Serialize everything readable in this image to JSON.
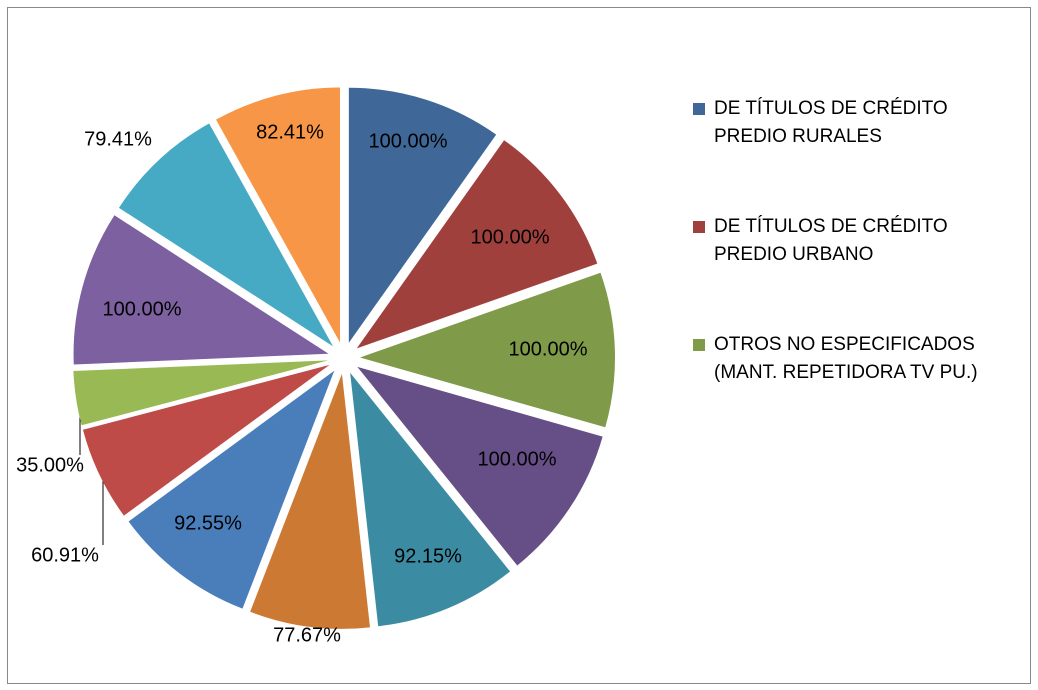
{
  "chart_data": {
    "type": "pie",
    "categories": [
      "DE TÍTULOS DE CRÉDITO PREDIO RURALES",
      "DE TÍTULOS DE CRÉDITO PREDIO URBANO",
      "OTROS NO ESPECIFICADOS (MANT. REPETIDORA TV PU.)",
      null,
      null,
      null,
      null,
      null,
      null,
      null,
      null,
      null
    ],
    "values": [
      100.0,
      100.0,
      100.0,
      100.0,
      92.15,
      77.67,
      92.55,
      60.91,
      35.0,
      100.0,
      79.41,
      82.41
    ],
    "value_labels": [
      "100.00%",
      "100.00%",
      "100.00%",
      "100.00%",
      "92.15%",
      "77.67%",
      "92.55%",
      "60.91%",
      "35.00%",
      "100.00%",
      "79.41%",
      "82.41%"
    ],
    "colors": [
      "#3f6797",
      "#a0403d",
      "#7f9a48",
      "#664f86",
      "#3b8ca3",
      "#cc7a33",
      "#4a7ebb",
      "#be4b48",
      "#98b954",
      "#7d60a0",
      "#46aac5",
      "#f79646"
    ],
    "legend": "right"
  }
}
